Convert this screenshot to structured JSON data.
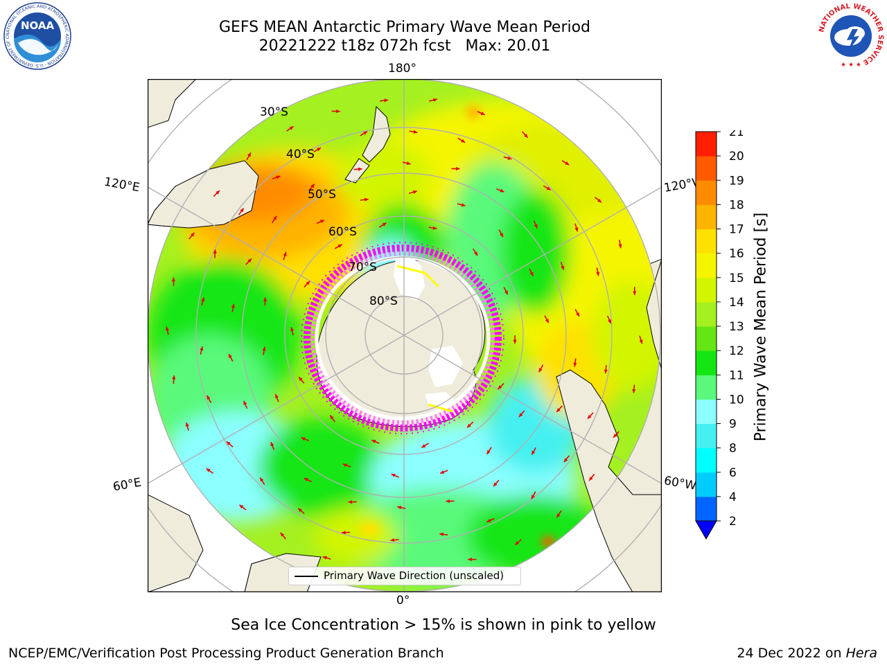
{
  "title": {
    "line1": "GEFS MEAN Antarctic Primary Wave Mean Period",
    "line2": "20221222 t18z 072h fcst   Max: 20.01"
  },
  "logos": {
    "noaa": {
      "text": "NOAA",
      "ring_text": "NATIONAL OCEANIC AND ATMOSPHERIC ADMINISTRATION · U.S. DEPARTMENT OF COMMERCE"
    },
    "nws": {
      "ring_text": "NATIONAL WEATHER SERVICE"
    }
  },
  "map": {
    "projection": "south-polar-stereographic",
    "longitude_labels": {
      "top": "180°",
      "bottom": "0°",
      "upper_left": "120°E",
      "lower_left": "60°E",
      "upper_right": "120°W",
      "lower_right": "60°W"
    },
    "latitude_labels": [
      "30°S",
      "40°S",
      "50°S",
      "60°S",
      "70°S",
      "80°S"
    ],
    "land_color": "#efecdc",
    "ocean_palette": [
      "#46f0f0",
      "#8cffff",
      "#5af97c",
      "#14e614",
      "#a5f020",
      "#d2f500",
      "#f5f500",
      "#ffe100",
      "#ffb400",
      "#ff8c00",
      "#ff5a00",
      "#ff1e00"
    ],
    "arrow_color": "#e60000",
    "arrow_icon": "direction-arrow-icon",
    "sea_ice_colors": [
      "#ff00ff",
      "#ff78ff",
      "#ffff00"
    ]
  },
  "legend": {
    "label": "Primary Wave Direction (unscaled)"
  },
  "colorbar": {
    "label": "Primary Wave Mean Period [s]",
    "ticks": [
      "2",
      "4",
      "6",
      "8",
      "9",
      "10",
      "11",
      "12",
      "13",
      "14",
      "15",
      "16",
      "17",
      "18",
      "19",
      "20",
      "21"
    ],
    "colors": [
      "#0066ff",
      "#00ccff",
      "#00ffff",
      "#46f0f0",
      "#8cffff",
      "#5af97c",
      "#14e614",
      "#64e614",
      "#a5f020",
      "#d2f500",
      "#f5f500",
      "#ffe100",
      "#ffb400",
      "#ff8c00",
      "#ff5a00",
      "#ff1e00"
    ],
    "extend_color": "#0000ff"
  },
  "sea_ice_note": "Sea Ice Concentration > 15% is shown in pink to yellow",
  "footer": {
    "left": "NCEP/EMC/Verification Post Processing Product Generation Branch",
    "right_prefix": "24 Dec 2022 on",
    "right_machine": "Hera"
  }
}
